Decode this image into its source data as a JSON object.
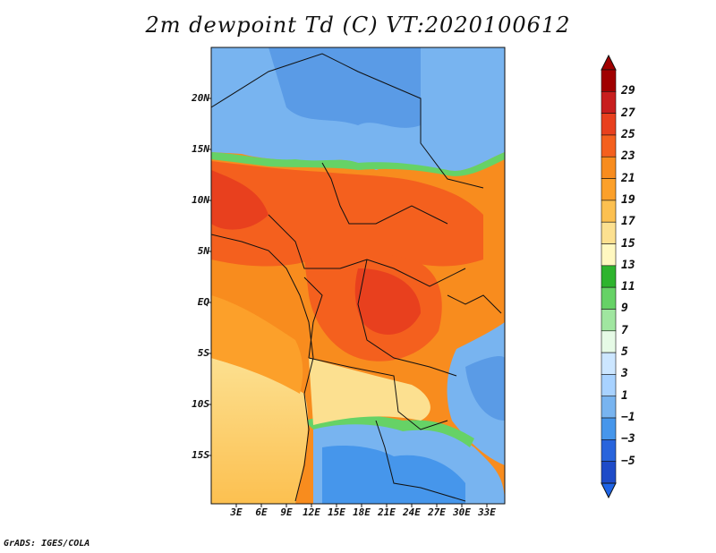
{
  "title": "2m dewpoint Td (C) VT:2020100612",
  "footer": "GrADS: IGES/COLA",
  "map": {
    "lat_labels": [
      "20N",
      "15N",
      "10N",
      "5N",
      "EQ",
      "5S",
      "10S",
      "15S"
    ],
    "lon_labels": [
      "3E",
      "6E",
      "9E",
      "12E",
      "15E",
      "18E",
      "21E",
      "24E",
      "27E",
      "30E",
      "33E"
    ]
  },
  "colorbar": {
    "labels": [
      "29",
      "27",
      "25",
      "23",
      "21",
      "19",
      "17",
      "15",
      "13",
      "11",
      "9",
      "7",
      "5",
      "3",
      "1",
      "−1",
      "−3",
      "−5"
    ],
    "colors": [
      "#a00000",
      "#c81e1e",
      "#e8401e",
      "#f4601e",
      "#f88c1e",
      "#fca02a",
      "#fcc050",
      "#fce090",
      "#fff8c0",
      "#2eb42e",
      "#66d266",
      "#a0e6a0",
      "#e6fae6",
      "#cce6ff",
      "#a8d2ff",
      "#78b4f0",
      "#4696eb",
      "#2864dc",
      "#1e4bc8"
    ]
  },
  "colors": {
    "blue_dry": "#5a9be6",
    "green_transition": "#66d266",
    "orange_humid": "#f4601e",
    "yellow_coast": "#fce090"
  }
}
